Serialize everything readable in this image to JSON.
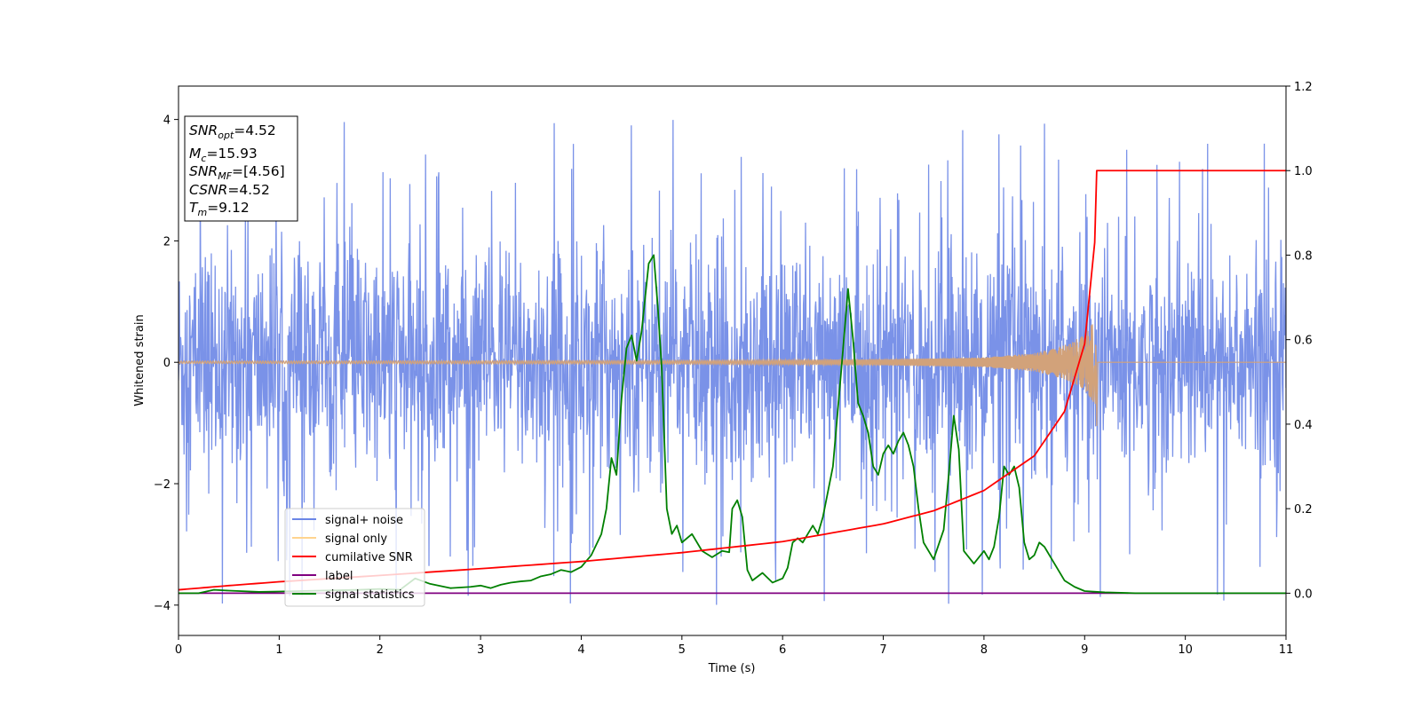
{
  "chart_data": {
    "type": "line",
    "xlabel": "Time (s)",
    "ylabel": "Whitened strain",
    "xlim": [
      0,
      11
    ],
    "ylim_left": [
      -4.5,
      4.55
    ],
    "ylim_right": [
      -0.1,
      1.2
    ],
    "x_ticks": [
      "0",
      "1",
      "2",
      "3",
      "4",
      "5",
      "6",
      "7",
      "8",
      "9",
      "10",
      "11"
    ],
    "y_left_ticks": [
      "−4",
      "−2",
      "0",
      "2",
      "4"
    ],
    "y_right_ticks": [
      "0.0",
      "0.2",
      "0.4",
      "0.6",
      "0.8",
      "1.0",
      "1.2"
    ],
    "grid": false,
    "legend_position": "lower-left",
    "legend": [
      "signal+ noise",
      "signal only",
      "cumilative SNR",
      "label",
      "signal statistics"
    ],
    "colors": {
      "signal_noise": "#6b86e6",
      "signal_only": "#d2a27a",
      "cumulative_snr": "#ff0000",
      "label": "#800080",
      "signal_statistics": "#008000"
    },
    "info_box": {
      "snr_opt_sym": "SNR",
      "snr_opt_sub": "opt",
      "snr_opt_val": "=4.52",
      "mc_sym": "M",
      "mc_sub": "c",
      "mc_val": "=15.93",
      "snr_mf_sym": "SNR",
      "snr_mf_sub": "MF",
      "snr_mf_val": "=[4.56]",
      "csnr_sym": "CSNR",
      "csnr_val": "=4.52",
      "tm_sym": "T",
      "tm_sub": "m",
      "tm_val": "=9.12"
    },
    "signal_noise": {
      "axis": "left",
      "mean": 0,
      "approx_range": [
        -4.1,
        4.0
      ],
      "x_range": [
        0,
        11
      ],
      "description_values": {
        "typical_envelope": [
          -2.2,
          2.2
        ]
      }
    },
    "signal_only": {
      "axis": "left",
      "envelope": {
        "x": [
          0,
          5,
          7,
          8,
          8.5,
          8.8,
          9.0,
          9.1,
          9.12
        ],
        "amplitude": [
          0.02,
          0.03,
          0.05,
          0.08,
          0.15,
          0.28,
          0.45,
          0.7,
          0.8
        ]
      },
      "min_at_merger": -1.05,
      "after_merger": 0
    },
    "cumulative_snr": {
      "axis": "right",
      "x": [
        0,
        0.5,
        1,
        2,
        3,
        4,
        5,
        6,
        7,
        7.5,
        8,
        8.5,
        8.8,
        9.0,
        9.1,
        9.12,
        9.13,
        11
      ],
      "y": [
        0.008,
        0.018,
        0.027,
        0.042,
        0.058,
        0.075,
        0.096,
        0.122,
        0.164,
        0.195,
        0.243,
        0.325,
        0.43,
        0.59,
        0.83,
        1.0,
        1.0,
        1.0
      ]
    },
    "label_series": {
      "axis": "right",
      "x": [
        0,
        11
      ],
      "y": [
        0,
        0
      ]
    },
    "signal_statistics": {
      "axis": "right",
      "x": [
        0,
        0.2,
        0.35,
        0.5,
        0.8,
        1.0,
        1.2,
        1.4,
        1.6,
        1.8,
        2.0,
        2.2,
        2.35,
        2.5,
        2.7,
        2.9,
        3.0,
        3.1,
        3.2,
        3.3,
        3.4,
        3.5,
        3.6,
        3.7,
        3.8,
        3.9,
        4.0,
        4.1,
        4.2,
        4.25,
        4.3,
        4.35,
        4.4,
        4.45,
        4.5,
        4.55,
        4.6,
        4.67,
        4.72,
        4.76,
        4.8,
        4.85,
        4.9,
        4.95,
        5.0,
        5.1,
        5.2,
        5.3,
        5.4,
        5.47,
        5.5,
        5.55,
        5.6,
        5.65,
        5.7,
        5.8,
        5.9,
        6.0,
        6.05,
        6.1,
        6.15,
        6.2,
        6.25,
        6.3,
        6.35,
        6.4,
        6.5,
        6.58,
        6.65,
        6.7,
        6.75,
        6.8,
        6.85,
        6.9,
        6.95,
        7.0,
        7.05,
        7.1,
        7.15,
        7.2,
        7.25,
        7.3,
        7.35,
        7.4,
        7.5,
        7.6,
        7.65,
        7.7,
        7.75,
        7.8,
        7.9,
        8.0,
        8.05,
        8.1,
        8.15,
        8.2,
        8.25,
        8.3,
        8.35,
        8.4,
        8.45,
        8.5,
        8.55,
        8.6,
        8.7,
        8.8,
        8.9,
        9.0,
        9.2,
        9.5,
        11
      ],
      "y": [
        0,
        0,
        0.008,
        0.006,
        0.003,
        0.004,
        0.005,
        0.006,
        0.007,
        0.008,
        0.01,
        0.008,
        0.035,
        0.022,
        0.012,
        0.015,
        0.018,
        0.012,
        0.02,
        0.025,
        0.028,
        0.03,
        0.04,
        0.045,
        0.055,
        0.05,
        0.062,
        0.09,
        0.14,
        0.2,
        0.32,
        0.28,
        0.46,
        0.58,
        0.61,
        0.55,
        0.62,
        0.78,
        0.8,
        0.68,
        0.53,
        0.2,
        0.14,
        0.16,
        0.12,
        0.14,
        0.1,
        0.085,
        0.1,
        0.097,
        0.2,
        0.22,
        0.18,
        0.055,
        0.03,
        0.048,
        0.025,
        0.035,
        0.06,
        0.12,
        0.13,
        0.12,
        0.14,
        0.16,
        0.14,
        0.18,
        0.3,
        0.52,
        0.72,
        0.6,
        0.45,
        0.42,
        0.38,
        0.3,
        0.28,
        0.33,
        0.35,
        0.33,
        0.36,
        0.38,
        0.35,
        0.3,
        0.2,
        0.12,
        0.08,
        0.15,
        0.28,
        0.42,
        0.34,
        0.1,
        0.07,
        0.1,
        0.08,
        0.11,
        0.18,
        0.3,
        0.28,
        0.3,
        0.25,
        0.12,
        0.08,
        0.09,
        0.12,
        0.11,
        0.07,
        0.03,
        0.015,
        0.005,
        0.002,
        0,
        0
      ]
    }
  }
}
